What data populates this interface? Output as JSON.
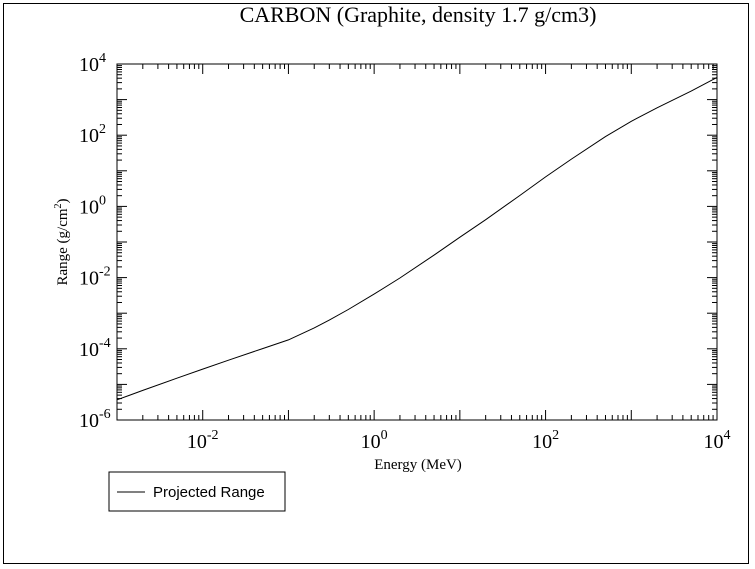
{
  "chart_data": {
    "type": "line",
    "title": "CARBON (Graphite, density 1.7 g/cm3)",
    "xlabel": "Energy (MeV)",
    "ylabel_main": "Range (g/cm",
    "ylabel_sup": "2",
    "ylabel_close": ")",
    "x_scale": "log",
    "y_scale": "log",
    "xlim": [
      0.001,
      10000
    ],
    "ylim": [
      1e-06,
      10000
    ],
    "x_ticks": [
      {
        "base": "10",
        "exp": "-2",
        "value": 0.01
      },
      {
        "base": "10",
        "exp": "0",
        "value": 1
      },
      {
        "base": "10",
        "exp": "2",
        "value": 100
      },
      {
        "base": "10",
        "exp": "4",
        "value": 10000
      }
    ],
    "y_ticks": [
      {
        "base": "10",
        "exp": "-6",
        "value": 1e-06
      },
      {
        "base": "10",
        "exp": "-4",
        "value": 0.0001
      },
      {
        "base": "10",
        "exp": "-2",
        "value": 0.01
      },
      {
        "base": "10",
        "exp": "0",
        "value": 1
      },
      {
        "base": "10",
        "exp": "2",
        "value": 100
      },
      {
        "base": "10",
        "exp": "4",
        "value": 10000
      }
    ],
    "grid": false,
    "legend_position": "bottom-left, below plot",
    "series": [
      {
        "name": "Projected Range",
        "color": "#000000",
        "x": [
          0.001,
          0.002,
          0.005,
          0.01,
          0.02,
          0.05,
          0.1,
          0.2,
          0.3,
          0.5,
          1,
          2,
          5,
          10,
          20,
          50,
          100,
          200,
          500,
          1000,
          2000,
          5000,
          10000
        ],
        "y": [
          3.7e-06,
          6.8e-06,
          1.49e-05,
          2.69e-05,
          4.79e-05,
          0.000101,
          0.000178,
          0.000386,
          0.000639,
          0.00127,
          0.00343,
          0.00973,
          0.0429,
          0.136,
          0.422,
          2.02,
          6.74,
          21.3,
          91.5,
          245,
          587,
          1730,
          4200
        ]
      }
    ]
  }
}
